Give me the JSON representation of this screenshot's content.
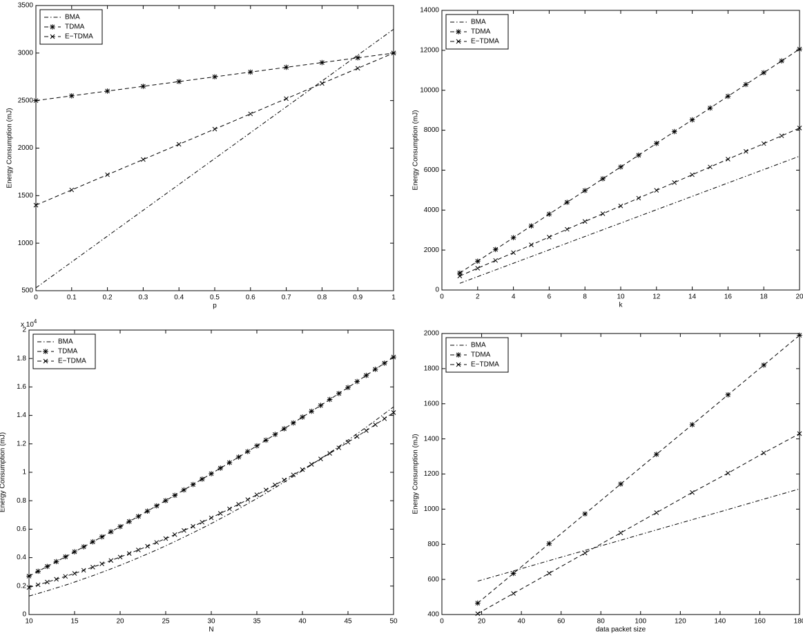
{
  "chart_data": [
    {
      "type": "line",
      "xlabel": "p",
      "ylabel": "Energy Consumption (mJ)",
      "x": [
        0,
        0.1,
        0.2,
        0.3,
        0.4,
        0.5,
        0.6,
        0.7,
        0.8,
        0.9,
        1
      ],
      "xlim": [
        0,
        1
      ],
      "xticks": [
        0,
        0.1,
        0.2,
        0.3,
        0.4,
        0.5,
        0.6,
        0.7,
        0.8,
        0.9,
        1
      ],
      "ylim": [
        500,
        3500
      ],
      "yticks": [
        500,
        1000,
        1500,
        2000,
        2500,
        3000,
        3500
      ],
      "grid": false,
      "legend": "upper-left",
      "series": [
        {
          "name": "BMA",
          "color": "#000000",
          "dash": "dash-dot",
          "marker": "none",
          "values": [
            530,
            802,
            1074,
            1346,
            1618,
            1890,
            2162,
            2434,
            2706,
            2978,
            3250
          ]
        },
        {
          "name": "TDMA",
          "color": "#000000",
          "dash": "dashed",
          "marker": "star",
          "values": [
            2500,
            2550,
            2600,
            2650,
            2700,
            2750,
            2800,
            2850,
            2900,
            2950,
            3000
          ]
        },
        {
          "name": "E−TDMA",
          "color": "#000000",
          "dash": "dashed",
          "marker": "x",
          "values": [
            1400,
            1560,
            1720,
            1880,
            2040,
            2200,
            2360,
            2520,
            2680,
            2840,
            3000
          ]
        }
      ]
    },
    {
      "type": "line",
      "xlabel": "k",
      "ylabel": "Energy Consumption (mJ)",
      "x": [
        1,
        2,
        3,
        4,
        5,
        6,
        7,
        8,
        9,
        10,
        11,
        12,
        13,
        14,
        15,
        16,
        17,
        18,
        19,
        20
      ],
      "xlim": [
        0,
        20
      ],
      "xticks": [
        0,
        2,
        4,
        6,
        8,
        10,
        12,
        14,
        16,
        18,
        20
      ],
      "ylim": [
        0,
        14000
      ],
      "yticks": [
        0,
        2000,
        4000,
        6000,
        8000,
        10000,
        12000,
        14000
      ],
      "grid": false,
      "legend": "upper-left",
      "series": [
        {
          "name": "BMA",
          "color": "#000000",
          "dash": "dash-dot",
          "marker": "none",
          "values": [
            335,
            670,
            1005,
            1340,
            1675,
            2010,
            2345,
            2680,
            3015,
            3350,
            3685,
            4020,
            4355,
            4690,
            5025,
            5360,
            5695,
            6030,
            6365,
            6700
          ]
        },
        {
          "name": "TDMA",
          "color": "#000000",
          "dash": "dashed",
          "marker": "star",
          "values": [
            850,
            1440,
            2030,
            2620,
            3210,
            3800,
            4390,
            4980,
            5570,
            6160,
            6750,
            7340,
            7930,
            8520,
            9110,
            9700,
            10290,
            10880,
            11470,
            12060
          ]
        },
        {
          "name": "E−TDMA",
          "color": "#000000",
          "dash": "dashed",
          "marker": "x",
          "values": [
            700,
            1090,
            1480,
            1870,
            2260,
            2650,
            3040,
            3430,
            3820,
            4210,
            4600,
            4990,
            5380,
            5770,
            6160,
            6550,
            6940,
            7330,
            7720,
            8110
          ]
        }
      ]
    },
    {
      "type": "line",
      "xlabel": "N",
      "ylabel": "Energy Consumption (mJ)",
      "y_multiplier": {
        "text": "x 10",
        "exponent": "4"
      },
      "x": [
        10,
        11,
        12,
        13,
        14,
        15,
        16,
        17,
        18,
        19,
        20,
        21,
        22,
        23,
        24,
        25,
        26,
        27,
        28,
        29,
        30,
        31,
        32,
        33,
        34,
        35,
        36,
        37,
        38,
        39,
        40,
        41,
        42,
        43,
        44,
        45,
        46,
        47,
        48,
        49,
        50
      ],
      "xlim": [
        10,
        50
      ],
      "xticks": [
        10,
        15,
        20,
        25,
        30,
        35,
        40,
        45,
        50
      ],
      "ylim": [
        0,
        2
      ],
      "yticks": [
        0,
        0.2,
        0.4,
        0.6,
        0.8,
        1,
        1.2,
        1.4,
        1.6,
        1.8,
        2
      ],
      "grid": false,
      "legend": "upper-left",
      "series": [
        {
          "name": "BMA",
          "color": "#000000",
          "dash": "dash-dot",
          "marker": "none",
          "values": [
            0.13,
            0.148,
            0.167,
            0.187,
            0.207,
            0.228,
            0.251,
            0.273,
            0.297,
            0.321,
            0.346,
            0.372,
            0.399,
            0.426,
            0.454,
            0.483,
            0.513,
            0.544,
            0.575,
            0.607,
            0.64,
            0.674,
            0.708,
            0.743,
            0.779,
            0.816,
            0.853,
            0.892,
            0.931,
            0.971,
            1.011,
            1.053,
            1.095,
            1.138,
            1.181,
            1.226,
            1.271,
            1.317,
            1.364,
            1.412,
            1.46
          ]
        },
        {
          "name": "TDMA",
          "color": "#000000",
          "dash": "dashed",
          "marker": "star",
          "values": [
            0.27,
            0.304,
            0.338,
            0.372,
            0.406,
            0.441,
            0.476,
            0.511,
            0.546,
            0.582,
            0.618,
            0.654,
            0.69,
            0.727,
            0.764,
            0.801,
            0.838,
            0.876,
            0.914,
            0.952,
            0.99,
            1.029,
            1.068,
            1.107,
            1.146,
            1.186,
            1.226,
            1.266,
            1.306,
            1.347,
            1.388,
            1.429,
            1.47,
            1.512,
            1.554,
            1.596,
            1.638,
            1.681,
            1.724,
            1.767,
            1.81
          ]
        },
        {
          "name": "E−TDMA",
          "color": "#000000",
          "dash": "dashed",
          "marker": "x",
          "values": [
            0.19,
            0.209,
            0.228,
            0.248,
            0.268,
            0.289,
            0.311,
            0.333,
            0.356,
            0.38,
            0.404,
            0.429,
            0.454,
            0.48,
            0.507,
            0.534,
            0.562,
            0.591,
            0.62,
            0.649,
            0.68,
            0.711,
            0.743,
            0.775,
            0.808,
            0.842,
            0.876,
            0.911,
            0.946,
            0.982,
            1.019,
            1.056,
            1.094,
            1.133,
            1.172,
            1.212,
            1.252,
            1.293,
            1.335,
            1.377,
            1.42
          ]
        }
      ]
    },
    {
      "type": "line",
      "xlabel": "data packet size",
      "ylabel": "Energy Consumption (mJ)",
      "x": [
        18,
        36,
        54,
        72,
        90,
        108,
        126,
        144,
        162,
        180
      ],
      "xlim": [
        0,
        180
      ],
      "xticks": [
        0,
        20,
        40,
        60,
        80,
        100,
        120,
        140,
        160,
        180
      ],
      "ylim": [
        400,
        2000
      ],
      "yticks": [
        400,
        600,
        800,
        1000,
        1200,
        1400,
        1600,
        1800,
        2000
      ],
      "grid": false,
      "legend": "upper-left",
      "series": [
        {
          "name": "BMA",
          "color": "#000000",
          "dash": "dash-dot",
          "marker": "none",
          "values": [
            590,
            648,
            707,
            765,
            823,
            882,
            940,
            998,
            1057,
            1115
          ]
        },
        {
          "name": "TDMA",
          "color": "#000000",
          "dash": "dashed",
          "marker": "star",
          "values": [
            465,
            634,
            804,
            973,
            1143,
            1312,
            1481,
            1651,
            1820,
            1990
          ]
        },
        {
          "name": "E−TDMA",
          "color": "#000000",
          "dash": "dashed",
          "marker": "x",
          "values": [
            405,
            520,
            635,
            750,
            865,
            980,
            1095,
            1205,
            1320,
            1430
          ]
        }
      ]
    }
  ]
}
